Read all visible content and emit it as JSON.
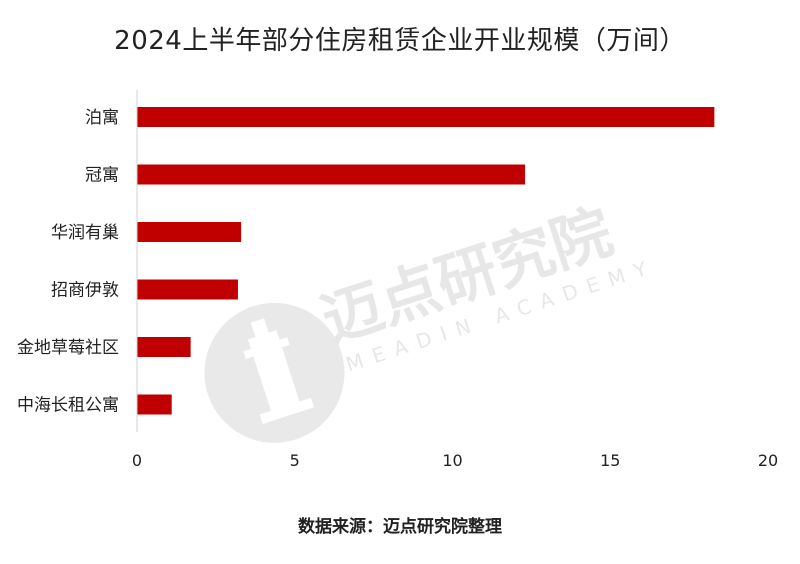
{
  "chart_data": {
    "type": "bar",
    "orientation": "horizontal",
    "title": "2024上半年部分住房租赁企业开业规模（万间）",
    "categories": [
      "泊寓",
      "冠寓",
      "华润有巢",
      "招商伊敦",
      "金地草莓社区",
      "中海长租公寓"
    ],
    "values": [
      18.3,
      12.3,
      3.3,
      3.2,
      1.7,
      1.1
    ],
    "xlim": [
      0,
      20
    ],
    "xticks": [
      "0",
      "5",
      "10",
      "15",
      "20"
    ],
    "xlabel": "",
    "ylabel": "",
    "grid": false,
    "legend": "none",
    "bar_color": "#c00000",
    "source": "数据来源：迈点研究院整理"
  },
  "watermark": {
    "text": "迈点研究院",
    "subtext": "MEADIN ACADEMY",
    "icon": "tower-logo-icon"
  }
}
